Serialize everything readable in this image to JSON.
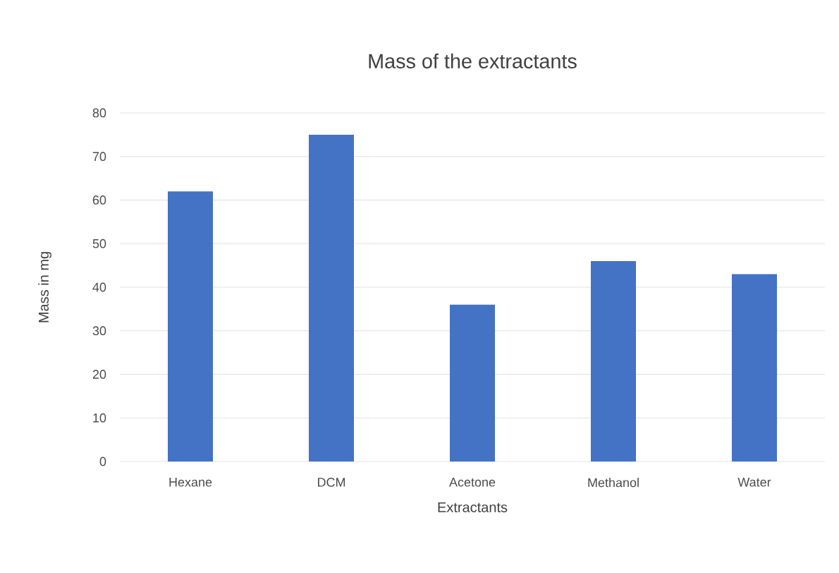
{
  "chart_data": {
    "type": "bar",
    "title": "Mass of the extractants",
    "xlabel": "Extractants",
    "ylabel": "Mass in mg",
    "categories": [
      "Hexane",
      "DCM",
      "Acetone",
      "Methanol",
      "Water"
    ],
    "values": [
      62,
      75,
      36,
      46,
      43
    ],
    "color": "#4472c4",
    "ylim": [
      0,
      80
    ],
    "yticks": [
      0,
      10,
      20,
      30,
      40,
      50,
      60,
      70,
      80
    ],
    "grid": "y"
  }
}
